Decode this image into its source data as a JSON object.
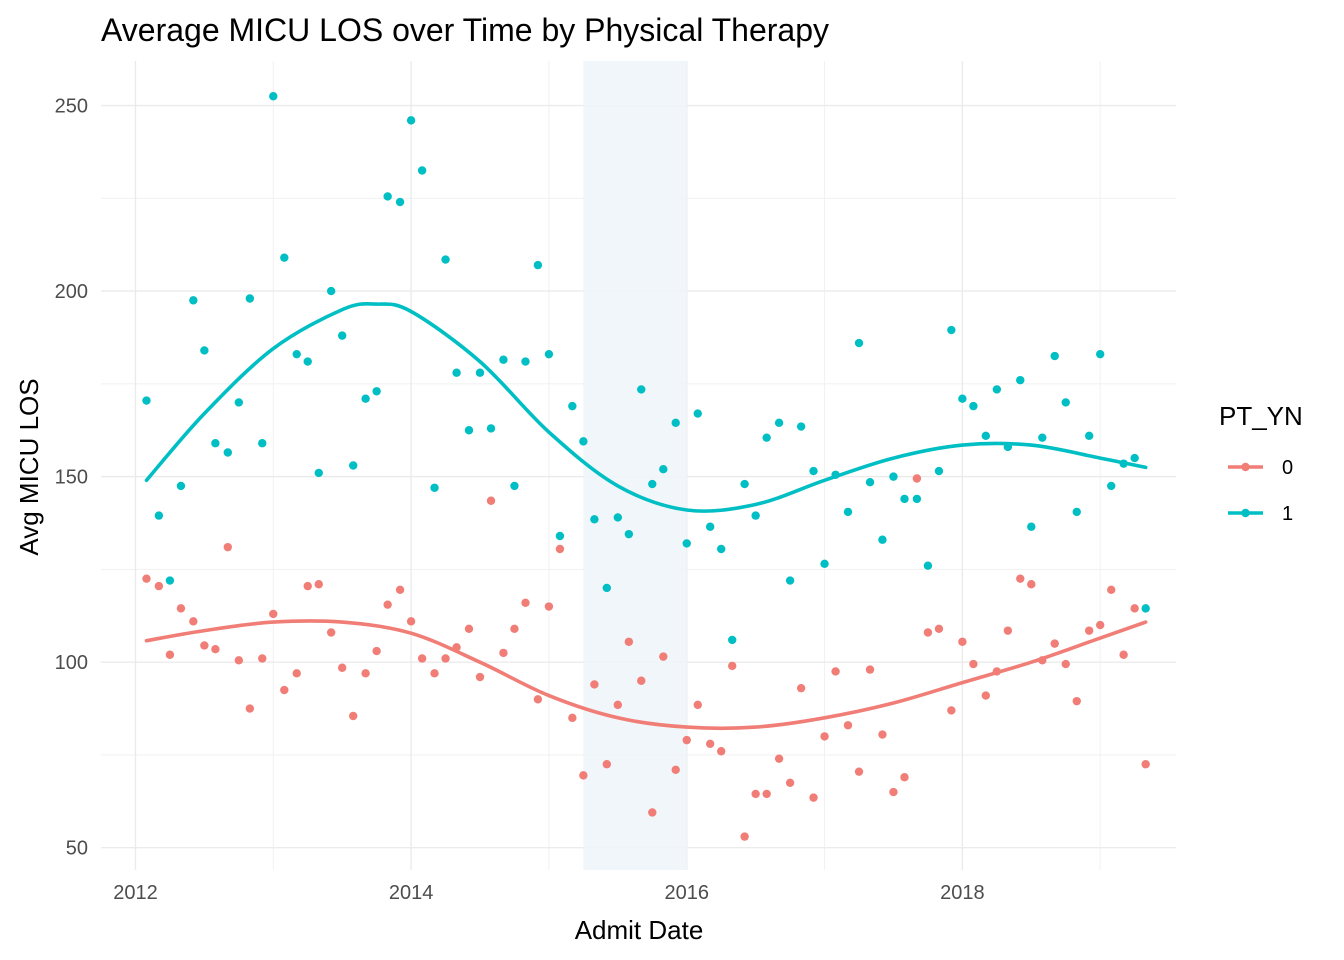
{
  "chart_data": {
    "type": "scatter",
    "title": "Average MICU LOS over Time by Physical Therapy",
    "xlabel": "Admit Date",
    "ylabel": "Avg MICU LOS",
    "xlim": [
      2011.75,
      2019.55
    ],
    "ylim": [
      44,
      262
    ],
    "x_ticks": [
      2012,
      2014,
      2016,
      2018
    ],
    "y_ticks": [
      50,
      100,
      150,
      200,
      250
    ],
    "grid": true,
    "highlight_band": {
      "x_start": 2015.25,
      "x_end": 2016.0,
      "color": "#eef5f8"
    },
    "legend": {
      "title": "PT_YN",
      "position": "right"
    },
    "series": [
      {
        "name": "0",
        "color": "#f17d77",
        "points": [
          [
            2012.08,
            122.5
          ],
          [
            2012.17,
            120.5
          ],
          [
            2012.25,
            102.0
          ],
          [
            2012.33,
            114.5
          ],
          [
            2012.42,
            111.0
          ],
          [
            2012.5,
            104.5
          ],
          [
            2012.58,
            103.5
          ],
          [
            2012.67,
            131.0
          ],
          [
            2012.75,
            100.5
          ],
          [
            2012.83,
            87.5
          ],
          [
            2012.92,
            101.0
          ],
          [
            2013.0,
            113.0
          ],
          [
            2013.08,
            92.5
          ],
          [
            2013.17,
            97.0
          ],
          [
            2013.25,
            120.5
          ],
          [
            2013.33,
            121.0
          ],
          [
            2013.42,
            108.0
          ],
          [
            2013.5,
            98.5
          ],
          [
            2013.58,
            85.5
          ],
          [
            2013.67,
            97.0
          ],
          [
            2013.75,
            103.0
          ],
          [
            2013.83,
            115.5
          ],
          [
            2013.92,
            119.5
          ],
          [
            2014.0,
            111.0
          ],
          [
            2014.08,
            101.0
          ],
          [
            2014.17,
            97.0
          ],
          [
            2014.25,
            101.0
          ],
          [
            2014.33,
            104.0
          ],
          [
            2014.42,
            109.0
          ],
          [
            2014.5,
            96.0
          ],
          [
            2014.58,
            143.5
          ],
          [
            2014.67,
            102.5
          ],
          [
            2014.75,
            109.0
          ],
          [
            2014.83,
            116.0
          ],
          [
            2014.92,
            90.0
          ],
          [
            2015.0,
            115.0
          ],
          [
            2015.08,
            130.5
          ],
          [
            2015.17,
            85.0
          ],
          [
            2015.25,
            69.5
          ],
          [
            2015.33,
            94.0
          ],
          [
            2015.42,
            72.5
          ],
          [
            2015.5,
            88.5
          ],
          [
            2015.58,
            105.5
          ],
          [
            2015.67,
            95.0
          ],
          [
            2015.75,
            59.5
          ],
          [
            2015.83,
            101.5
          ],
          [
            2015.92,
            71.0
          ],
          [
            2016.0,
            79.0
          ],
          [
            2016.08,
            88.5
          ],
          [
            2016.17,
            78.0
          ],
          [
            2016.25,
            76.0
          ],
          [
            2016.33,
            99.0
          ],
          [
            2016.42,
            53.0
          ],
          [
            2016.5,
            64.5
          ],
          [
            2016.58,
            64.5
          ],
          [
            2016.67,
            74.0
          ],
          [
            2016.75,
            67.5
          ],
          [
            2016.83,
            93.0
          ],
          [
            2016.92,
            63.5
          ],
          [
            2017.0,
            80.0
          ],
          [
            2017.08,
            97.5
          ],
          [
            2017.17,
            83.0
          ],
          [
            2017.25,
            70.5
          ],
          [
            2017.33,
            98.0
          ],
          [
            2017.42,
            80.5
          ],
          [
            2017.5,
            65.0
          ],
          [
            2017.58,
            69.0
          ],
          [
            2017.67,
            149.5
          ],
          [
            2017.75,
            108.0
          ],
          [
            2017.83,
            109.0
          ],
          [
            2017.92,
            87.0
          ],
          [
            2018.0,
            105.5
          ],
          [
            2018.08,
            99.5
          ],
          [
            2018.17,
            91.0
          ],
          [
            2018.25,
            97.5
          ],
          [
            2018.33,
            108.5
          ],
          [
            2018.42,
            122.5
          ],
          [
            2018.5,
            121.0
          ],
          [
            2018.58,
            100.5
          ],
          [
            2018.67,
            105.0
          ],
          [
            2018.75,
            99.5
          ],
          [
            2018.83,
            89.5
          ],
          [
            2018.92,
            108.5
          ],
          [
            2019.0,
            110.0
          ],
          [
            2019.08,
            119.5
          ],
          [
            2019.17,
            102.0
          ],
          [
            2019.25,
            114.5
          ],
          [
            2019.33,
            72.5
          ]
        ],
        "smooth": [
          [
            2012.08,
            105.8
          ],
          [
            2012.5,
            108.5
          ],
          [
            2013.0,
            110.8
          ],
          [
            2013.5,
            110.8
          ],
          [
            2014.0,
            107.8
          ],
          [
            2014.5,
            100.0
          ],
          [
            2015.0,
            91.0
          ],
          [
            2015.5,
            85.0
          ],
          [
            2016.0,
            82.5
          ],
          [
            2016.5,
            82.5
          ],
          [
            2017.0,
            85.0
          ],
          [
            2017.5,
            89.0
          ],
          [
            2018.0,
            94.5
          ],
          [
            2018.5,
            100.0
          ],
          [
            2019.0,
            106.5
          ],
          [
            2019.33,
            110.8
          ]
        ]
      },
      {
        "name": "1",
        "color": "#00bfc4",
        "points": [
          [
            2012.08,
            170.5
          ],
          [
            2012.17,
            139.5
          ],
          [
            2012.25,
            122.0
          ],
          [
            2012.33,
            147.5
          ],
          [
            2012.42,
            197.5
          ],
          [
            2012.5,
            184.0
          ],
          [
            2012.58,
            159.0
          ],
          [
            2012.67,
            156.5
          ],
          [
            2012.75,
            170.0
          ],
          [
            2012.83,
            198.0
          ],
          [
            2012.92,
            159.0
          ],
          [
            2013.0,
            252.5
          ],
          [
            2013.08,
            209.0
          ],
          [
            2013.17,
            183.0
          ],
          [
            2013.25,
            181.0
          ],
          [
            2013.33,
            151.0
          ],
          [
            2013.42,
            200.0
          ],
          [
            2013.5,
            188.0
          ],
          [
            2013.58,
            153.0
          ],
          [
            2013.67,
            171.0
          ],
          [
            2013.75,
            173.0
          ],
          [
            2013.83,
            225.5
          ],
          [
            2013.92,
            224.0
          ],
          [
            2014.0,
            246.0
          ],
          [
            2014.08,
            232.5
          ],
          [
            2014.17,
            147.0
          ],
          [
            2014.25,
            208.5
          ],
          [
            2014.33,
            178.0
          ],
          [
            2014.42,
            162.5
          ],
          [
            2014.5,
            178.0
          ],
          [
            2014.58,
            163.0
          ],
          [
            2014.67,
            181.5
          ],
          [
            2014.75,
            147.5
          ],
          [
            2014.83,
            181.0
          ],
          [
            2014.92,
            207.0
          ],
          [
            2015.0,
            183.0
          ],
          [
            2015.08,
            134.0
          ],
          [
            2015.17,
            169.0
          ],
          [
            2015.25,
            159.5
          ],
          [
            2015.33,
            138.5
          ],
          [
            2015.42,
            120.0
          ],
          [
            2015.5,
            139.0
          ],
          [
            2015.58,
            134.5
          ],
          [
            2015.67,
            173.5
          ],
          [
            2015.75,
            148.0
          ],
          [
            2015.83,
            152.0
          ],
          [
            2015.92,
            164.5
          ],
          [
            2016.0,
            132.0
          ],
          [
            2016.08,
            167.0
          ],
          [
            2016.17,
            136.5
          ],
          [
            2016.25,
            130.5
          ],
          [
            2016.33,
            106.0
          ],
          [
            2016.42,
            148.0
          ],
          [
            2016.5,
            139.5
          ],
          [
            2016.58,
            160.5
          ],
          [
            2016.67,
            164.5
          ],
          [
            2016.75,
            122.0
          ],
          [
            2016.83,
            163.5
          ],
          [
            2016.92,
            151.5
          ],
          [
            2017.0,
            126.5
          ],
          [
            2017.08,
            150.5
          ],
          [
            2017.17,
            140.5
          ],
          [
            2017.25,
            186.0
          ],
          [
            2017.33,
            148.5
          ],
          [
            2017.42,
            133.0
          ],
          [
            2017.5,
            150.0
          ],
          [
            2017.58,
            144.0
          ],
          [
            2017.67,
            144.0
          ],
          [
            2017.75,
            126.0
          ],
          [
            2017.83,
            151.5
          ],
          [
            2017.92,
            189.5
          ],
          [
            2018.0,
            171.0
          ],
          [
            2018.08,
            169.0
          ],
          [
            2018.17,
            161.0
          ],
          [
            2018.25,
            173.5
          ],
          [
            2018.33,
            158.0
          ],
          [
            2018.42,
            176.0
          ],
          [
            2018.5,
            136.5
          ],
          [
            2018.58,
            160.5
          ],
          [
            2018.67,
            182.5
          ],
          [
            2018.75,
            170.0
          ],
          [
            2018.83,
            140.5
          ],
          [
            2018.92,
            161.0
          ],
          [
            2019.0,
            183.0
          ],
          [
            2019.08,
            147.5
          ],
          [
            2019.17,
            153.5
          ],
          [
            2019.25,
            155.0
          ],
          [
            2019.33,
            114.5
          ]
        ],
        "smooth": [
          [
            2012.08,
            149.0
          ],
          [
            2012.5,
            167.0
          ],
          [
            2013.0,
            184.5
          ],
          [
            2013.5,
            195.0
          ],
          [
            2013.75,
            196.5
          ],
          [
            2014.0,
            194.5
          ],
          [
            2014.5,
            181.0
          ],
          [
            2015.0,
            162.0
          ],
          [
            2015.5,
            147.5
          ],
          [
            2016.0,
            141.0
          ],
          [
            2016.5,
            142.5
          ],
          [
            2017.0,
            149.0
          ],
          [
            2017.5,
            155.0
          ],
          [
            2018.0,
            158.5
          ],
          [
            2018.5,
            158.5
          ],
          [
            2019.0,
            155.0
          ],
          [
            2019.33,
            152.5
          ]
        ]
      }
    ]
  }
}
